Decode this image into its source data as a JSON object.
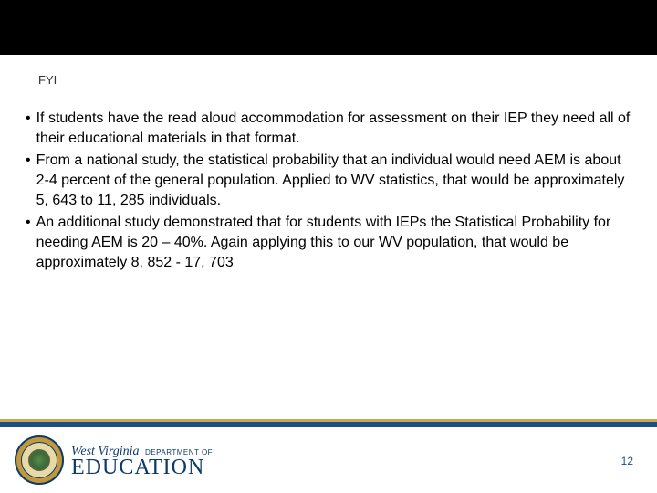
{
  "header": {
    "title": "FYI"
  },
  "bullets": [
    "If students have the read aloud accommodation for assessment on their IEP they need all of their educational materials in that format.",
    "From a national study, the statistical probability that an individual would need AEM is about 2-4 percent of the general population. Applied to WV statistics, that would be approximately 5, 643 to 11, 285 individuals.",
    "An additional study demonstrated that for students with IEPs the Statistical Probability for needing AEM  is 20 – 40%.  Again applying this to our WV population, that would be approximately  8, 852 - 17, 703"
  ],
  "footer": {
    "logo_wv": "West Virginia",
    "logo_dept": "DEPARTMENT OF",
    "logo_edu": "EDUCATION",
    "page_number": "12"
  },
  "colors": {
    "gold": "#c9a949",
    "blue": "#1a4e8a",
    "dark_blue": "#0b3a6b",
    "text": "#000000",
    "page_num_color": "#1a4e8a"
  }
}
